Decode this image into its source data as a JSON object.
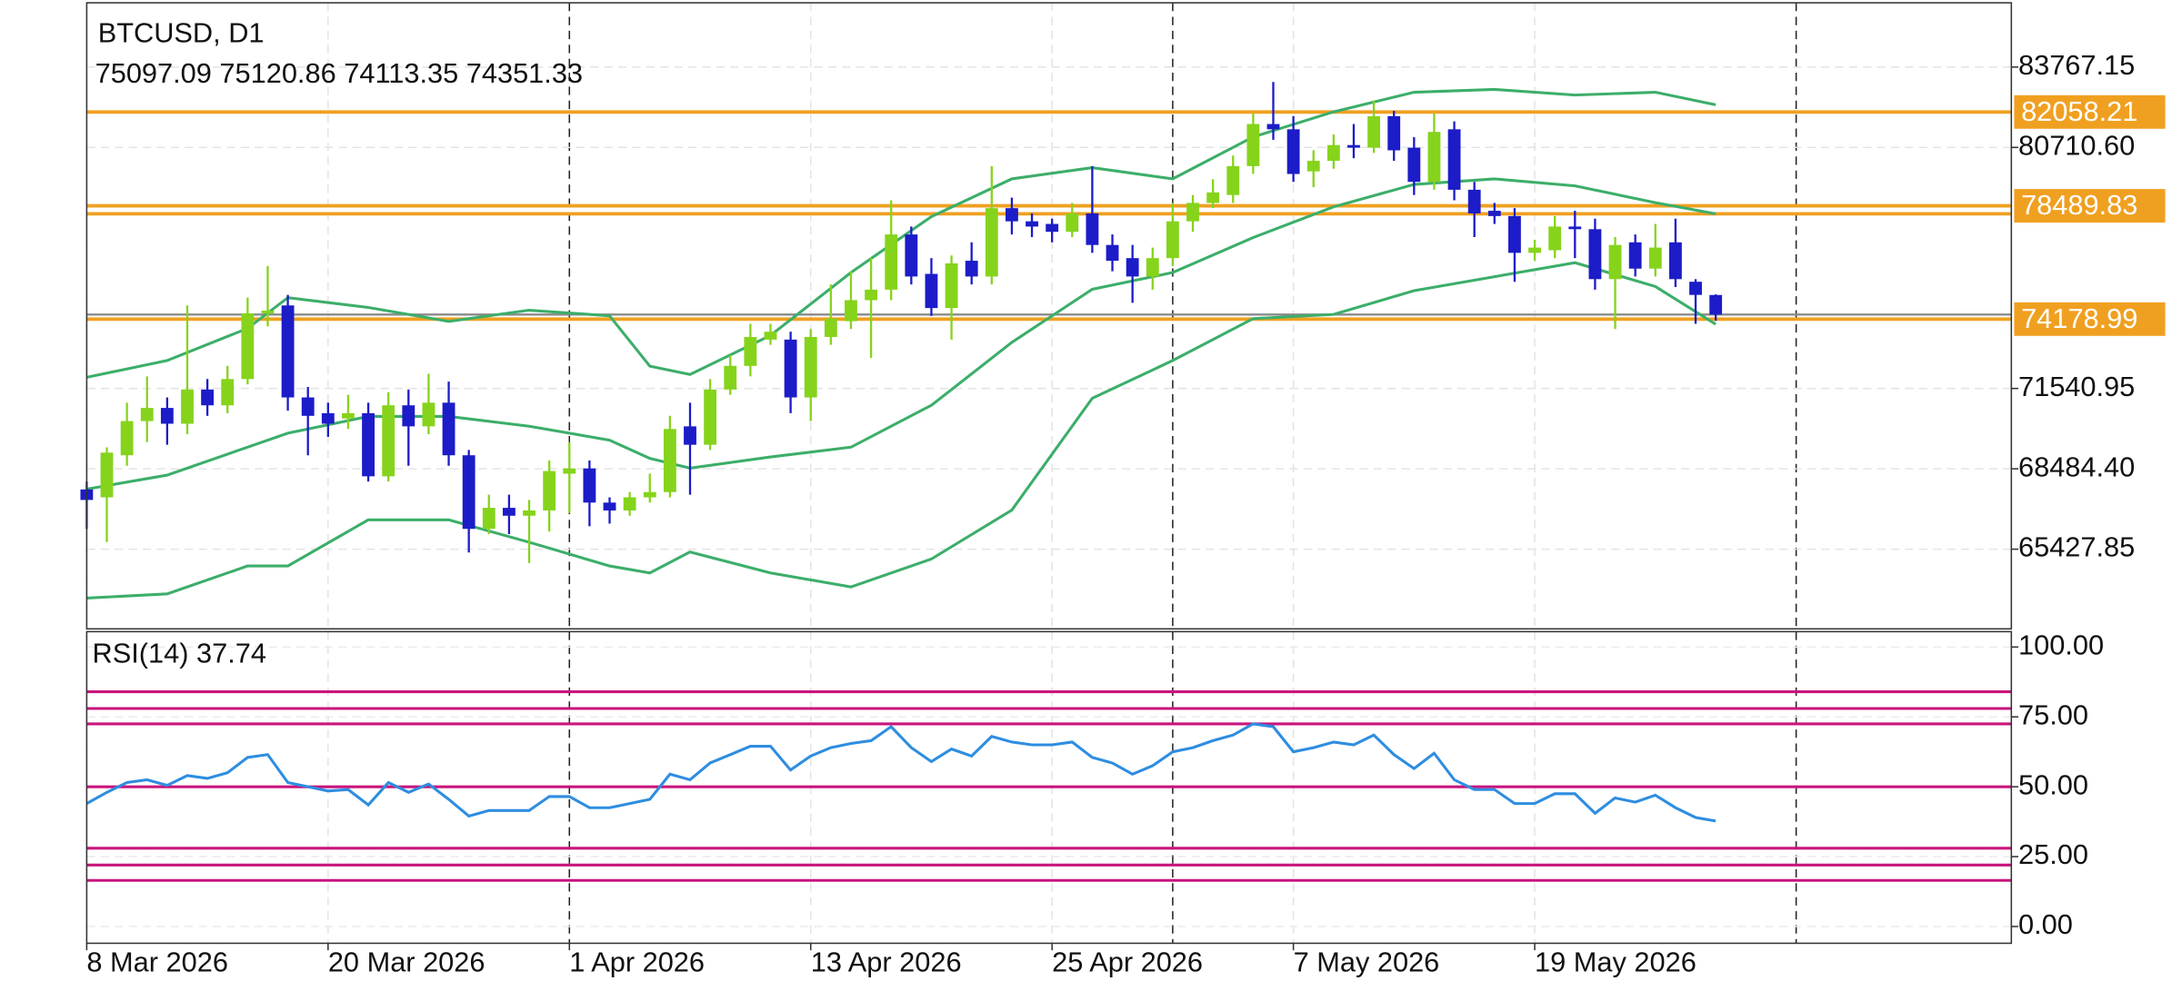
{
  "chart_data": {
    "type": "candlestick",
    "title": "BTCUSD, D1",
    "bull_color": "#86d31c",
    "bear_color": "#1c1cc8",
    "xlim": [
      0,
      95.7
    ],
    "xticks": [
      {
        "value": 0,
        "label": "8 Mar 2026"
      },
      {
        "value": 12,
        "label": "20 Mar 2026"
      },
      {
        "value": 24,
        "label": "1 Apr 2026"
      },
      {
        "value": 36,
        "label": "13 Apr 2026"
      },
      {
        "value": 48,
        "label": "25 Apr 2026"
      },
      {
        "value": 60,
        "label": "7 May 2026"
      },
      {
        "value": 72,
        "label": "19 May 2026"
      }
    ],
    "separators": [
      24,
      54,
      85
    ],
    "ylim": [
      62397,
      86212
    ],
    "yticks": [
      {
        "value": 83767.15,
        "label": "83767.15"
      },
      {
        "value": 80710.6,
        "label": "80710.60"
      },
      {
        "value": 71540.95,
        "label": "71540.95"
      },
      {
        "value": 68484.4,
        "label": "68484.40"
      },
      {
        "value": 65427.85,
        "label": "65427.85"
      }
    ],
    "grid": true,
    "ohlc": {
      "open": [
        67700,
        67400,
        69000,
        70300,
        70800,
        70200,
        71500,
        70900,
        71900,
        74400,
        74700,
        71200,
        70600,
        70400,
        70600,
        68200,
        70900,
        70100,
        71000,
        69000,
        66200,
        67000,
        66700,
        66900,
        68300,
        68500,
        67200,
        66900,
        67400,
        67600,
        70100,
        69400,
        71500,
        72400,
        73400,
        73400,
        71200,
        73500,
        74100,
        74900,
        75300,
        77400,
        75900,
        74600,
        76400,
        75800,
        78400,
        77900,
        77800,
        77500,
        78200,
        77000,
        76500,
        75800,
        76500,
        77900,
        78600,
        78900,
        80000,
        81600,
        81400,
        79800,
        80200,
        80800,
        80700,
        81900,
        80700,
        79400,
        81400,
        79100,
        78300,
        78100,
        76700,
        76800,
        77700,
        77600,
        75700,
        77100,
        76100,
        77100,
        75600,
        75097.09
      ],
      "high": [
        68000,
        69300,
        71000,
        72000,
        71200,
        74700,
        71900,
        72400,
        75000,
        76200,
        75100,
        71600,
        71000,
        71300,
        71000,
        71400,
        71500,
        72100,
        71800,
        69200,
        67500,
        67500,
        67300,
        68800,
        69500,
        68800,
        67400,
        67600,
        68300,
        70500,
        71000,
        71900,
        72800,
        74000,
        74000,
        73700,
        73800,
        75500,
        76000,
        76500,
        78700,
        77700,
        76500,
        76600,
        77100,
        80000,
        78800,
        78200,
        78000,
        78600,
        80000,
        77400,
        77000,
        76900,
        78600,
        78900,
        79500,
        80400,
        82000,
        83200,
        81900,
        80600,
        81200,
        81600,
        82500,
        82100,
        81100,
        82000,
        81700,
        79400,
        78600,
        78400,
        77200,
        78100,
        78300,
        78000,
        77300,
        77400,
        77800,
        78000,
        75700,
        75120.86
      ],
      "low": [
        66200,
        65700,
        68600,
        69500,
        69400,
        69800,
        70500,
        70600,
        71700,
        73900,
        70700,
        69000,
        69700,
        70000,
        68000,
        68000,
        68600,
        69800,
        68600,
        65300,
        66000,
        66000,
        64900,
        66100,
        66800,
        66300,
        66400,
        66700,
        67200,
        67400,
        67500,
        69200,
        71300,
        72000,
        73200,
        70600,
        70300,
        73200,
        73800,
        72700,
        74900,
        75500,
        74300,
        73400,
        75500,
        75500,
        77400,
        77300,
        77100,
        77300,
        76700,
        76000,
        74800,
        75300,
        76200,
        77500,
        78400,
        78600,
        79700,
        81000,
        79400,
        79200,
        79900,
        80300,
        80500,
        80200,
        78900,
        79100,
        78700,
        77300,
        77800,
        75600,
        76400,
        76500,
        76500,
        75300,
        73800,
        75800,
        75800,
        75400,
        74000,
        74113.35
      ],
      "close": [
        67300,
        69100,
        70300,
        70800,
        70200,
        71500,
        70900,
        71900,
        74400,
        74500,
        71200,
        70500,
        70200,
        70600,
        68200,
        70900,
        70100,
        71000,
        69000,
        66200,
        67000,
        66700,
        66900,
        68400,
        68500,
        67200,
        66900,
        67400,
        67600,
        70000,
        69400,
        71500,
        72400,
        73500,
        73700,
        71200,
        73500,
        74200,
        74900,
        75300,
        77400,
        75800,
        74600,
        76300,
        75800,
        78400,
        77900,
        77700,
        77500,
        78200,
        77000,
        76400,
        75800,
        76500,
        77900,
        78600,
        79000,
        80000,
        81600,
        81400,
        79700,
        80200,
        80800,
        80700,
        81900,
        80600,
        79400,
        81300,
        79100,
        78200,
        78100,
        76700,
        76900,
        77700,
        77600,
        75700,
        77000,
        76100,
        76900,
        75700,
        75100,
        74351.33
      ]
    },
    "bollinger": {
      "color": "#3cae6a",
      "x": [
        0,
        4,
        8,
        10,
        14,
        18,
        22,
        26,
        28,
        30,
        34,
        38,
        42,
        46,
        50,
        54,
        58,
        62,
        66,
        70,
        74,
        78,
        81
      ],
      "upper": [
        71965,
        72604,
        73826,
        74996,
        74624,
        74092,
        74518,
        74305,
        72391,
        72072,
        73560,
        75953,
        78079,
        79514,
        79940,
        79514,
        81109,
        82066,
        82810,
        82917,
        82704,
        82810,
        82332
      ],
      "middle": [
        67713,
        68244,
        69307,
        69839,
        70477,
        70477,
        70105,
        69573,
        68882,
        68510,
        68935,
        69307,
        70902,
        73295,
        75315,
        75953,
        77282,
        78451,
        79301,
        79514,
        79248,
        78611,
        78185
      ],
      "lower": [
        63566,
        63726,
        64789,
        64789,
        66544,
        66544,
        65694,
        64789,
        64523,
        65321,
        64523,
        63992,
        65055,
        66916,
        71168,
        72604,
        74198,
        74358,
        75262,
        75793,
        76324,
        75421,
        73986
      ]
    },
    "levels": [
      82058.21,
      78489.83,
      74178.99
    ],
    "unlabeled_levels": [
      78185
    ],
    "level_color": "#f0a020",
    "rsi": {
      "label": "RSI(14)",
      "color": "#2e8de0",
      "level_color": "#c8157d",
      "ylim": [
        -6,
        105.5
      ],
      "yticks": [
        {
          "value": 100,
          "label": "100.00"
        },
        {
          "value": 75,
          "label": "75.00"
        },
        {
          "value": 50,
          "label": "50.00"
        },
        {
          "value": 25,
          "label": "25.00"
        },
        {
          "value": 0,
          "label": "0.00"
        }
      ],
      "levels": [
        84,
        78,
        72.5,
        50,
        28,
        22,
        16.5
      ],
      "values": [
        44,
        48,
        51.5,
        52.5,
        50.5,
        54,
        53,
        55,
        60.5,
        61.5,
        51.5,
        50,
        48.5,
        49,
        43.5,
        51.5,
        48,
        51,
        45.5,
        39.5,
        41.5,
        41.5,
        41.5,
        46.5,
        46.5,
        42.5,
        42.5,
        44,
        45.5,
        54.5,
        52.5,
        58.5,
        61.5,
        64.5,
        64.5,
        56,
        61,
        64,
        65.5,
        66.5,
        71.5,
        64,
        59,
        63.5,
        61,
        68,
        66,
        65,
        65,
        66,
        60.5,
        58.5,
        54.5,
        57.5,
        62.5,
        64,
        66.5,
        68.5,
        72.5,
        71.5,
        62.5,
        64,
        66,
        65,
        68.5,
        61.5,
        56.5,
        62,
        52.5,
        49,
        49,
        44,
        44,
        47.5,
        47.5,
        40.5,
        46,
        44.5,
        47,
        42.5,
        39,
        37.74
      ]
    }
  }
}
